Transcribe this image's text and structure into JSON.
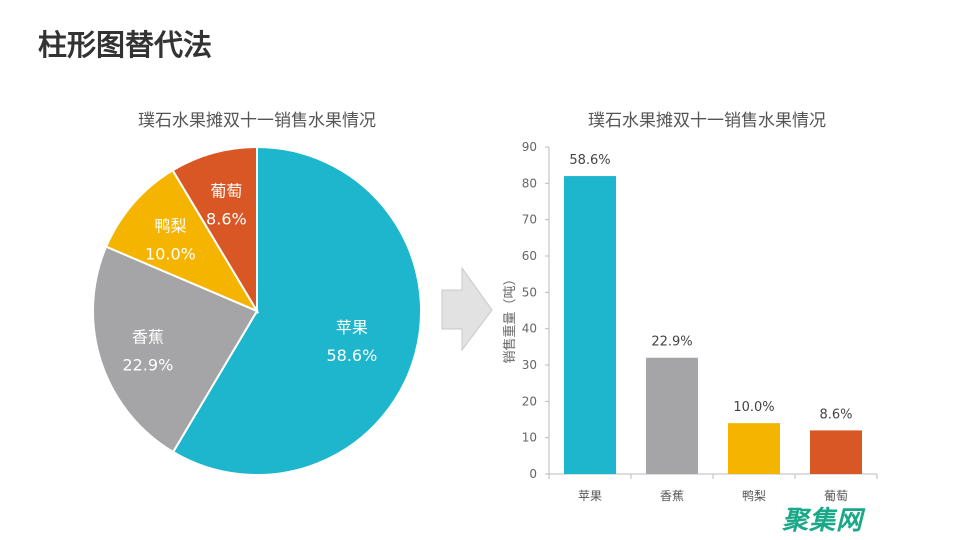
{
  "page_title": "柱形图替代法",
  "watermark": "聚集网",
  "chart_data": [
    {
      "type": "pie",
      "title": "璞石水果摊双十一销售水果情况",
      "categories": [
        "苹果",
        "香蕉",
        "鸭梨",
        "葡萄"
      ],
      "values": [
        58.6,
        22.9,
        10.0,
        8.6
      ],
      "labels": [
        "58.6%",
        "22.9%",
        "10.0%",
        "8.6%"
      ],
      "colors": [
        "#1db6cc",
        "#a5a4a6",
        "#f5b400",
        "#d95625"
      ]
    },
    {
      "type": "bar",
      "title": "璞石水果摊双十一销售水果情况",
      "ylabel": "销售重量（吨）",
      "xlabel": "",
      "categories": [
        "苹果",
        "香蕉",
        "鸭梨",
        "葡萄"
      ],
      "values": [
        82,
        32,
        14,
        12
      ],
      "data_labels": [
        "58.6%",
        "22.9%",
        "10.0%",
        "8.6%"
      ],
      "ylim": [
        0,
        90
      ],
      "yticks": [
        0,
        10,
        20,
        30,
        40,
        50,
        60,
        70,
        80,
        90
      ],
      "grid": false,
      "colors": [
        "#1db6cc",
        "#a5a4a6",
        "#f5b400",
        "#d95625"
      ]
    }
  ]
}
